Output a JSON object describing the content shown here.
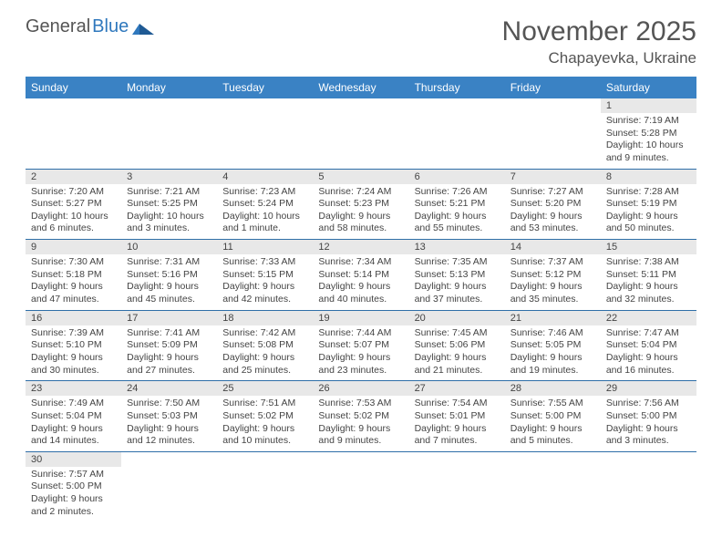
{
  "logo": {
    "text1": "General",
    "text2": "Blue"
  },
  "title": "November 2025",
  "location": "Chapayevka, Ukraine",
  "colors": {
    "header_bg": "#3a82c4",
    "header_text": "#ffffff",
    "daynum_bg": "#e8e8e8",
    "border": "#2f6fa8",
    "text": "#444444",
    "title": "#555555"
  },
  "weekdays": [
    "Sunday",
    "Monday",
    "Tuesday",
    "Wednesday",
    "Thursday",
    "Friday",
    "Saturday"
  ],
  "weeks": [
    [
      null,
      null,
      null,
      null,
      null,
      null,
      {
        "d": "1",
        "sr": "7:19 AM",
        "ss": "5:28 PM",
        "dl": "10 hours and 9 minutes."
      }
    ],
    [
      {
        "d": "2",
        "sr": "7:20 AM",
        "ss": "5:27 PM",
        "dl": "10 hours and 6 minutes."
      },
      {
        "d": "3",
        "sr": "7:21 AM",
        "ss": "5:25 PM",
        "dl": "10 hours and 3 minutes."
      },
      {
        "d": "4",
        "sr": "7:23 AM",
        "ss": "5:24 PM",
        "dl": "10 hours and 1 minute."
      },
      {
        "d": "5",
        "sr": "7:24 AM",
        "ss": "5:23 PM",
        "dl": "9 hours and 58 minutes."
      },
      {
        "d": "6",
        "sr": "7:26 AM",
        "ss": "5:21 PM",
        "dl": "9 hours and 55 minutes."
      },
      {
        "d": "7",
        "sr": "7:27 AM",
        "ss": "5:20 PM",
        "dl": "9 hours and 53 minutes."
      },
      {
        "d": "8",
        "sr": "7:28 AM",
        "ss": "5:19 PM",
        "dl": "9 hours and 50 minutes."
      }
    ],
    [
      {
        "d": "9",
        "sr": "7:30 AM",
        "ss": "5:18 PM",
        "dl": "9 hours and 47 minutes."
      },
      {
        "d": "10",
        "sr": "7:31 AM",
        "ss": "5:16 PM",
        "dl": "9 hours and 45 minutes."
      },
      {
        "d": "11",
        "sr": "7:33 AM",
        "ss": "5:15 PM",
        "dl": "9 hours and 42 minutes."
      },
      {
        "d": "12",
        "sr": "7:34 AM",
        "ss": "5:14 PM",
        "dl": "9 hours and 40 minutes."
      },
      {
        "d": "13",
        "sr": "7:35 AM",
        "ss": "5:13 PM",
        "dl": "9 hours and 37 minutes."
      },
      {
        "d": "14",
        "sr": "7:37 AM",
        "ss": "5:12 PM",
        "dl": "9 hours and 35 minutes."
      },
      {
        "d": "15",
        "sr": "7:38 AM",
        "ss": "5:11 PM",
        "dl": "9 hours and 32 minutes."
      }
    ],
    [
      {
        "d": "16",
        "sr": "7:39 AM",
        "ss": "5:10 PM",
        "dl": "9 hours and 30 minutes."
      },
      {
        "d": "17",
        "sr": "7:41 AM",
        "ss": "5:09 PM",
        "dl": "9 hours and 27 minutes."
      },
      {
        "d": "18",
        "sr": "7:42 AM",
        "ss": "5:08 PM",
        "dl": "9 hours and 25 minutes."
      },
      {
        "d": "19",
        "sr": "7:44 AM",
        "ss": "5:07 PM",
        "dl": "9 hours and 23 minutes."
      },
      {
        "d": "20",
        "sr": "7:45 AM",
        "ss": "5:06 PM",
        "dl": "9 hours and 21 minutes."
      },
      {
        "d": "21",
        "sr": "7:46 AM",
        "ss": "5:05 PM",
        "dl": "9 hours and 19 minutes."
      },
      {
        "d": "22",
        "sr": "7:47 AM",
        "ss": "5:04 PM",
        "dl": "9 hours and 16 minutes."
      }
    ],
    [
      {
        "d": "23",
        "sr": "7:49 AM",
        "ss": "5:04 PM",
        "dl": "9 hours and 14 minutes."
      },
      {
        "d": "24",
        "sr": "7:50 AM",
        "ss": "5:03 PM",
        "dl": "9 hours and 12 minutes."
      },
      {
        "d": "25",
        "sr": "7:51 AM",
        "ss": "5:02 PM",
        "dl": "9 hours and 10 minutes."
      },
      {
        "d": "26",
        "sr": "7:53 AM",
        "ss": "5:02 PM",
        "dl": "9 hours and 9 minutes."
      },
      {
        "d": "27",
        "sr": "7:54 AM",
        "ss": "5:01 PM",
        "dl": "9 hours and 7 minutes."
      },
      {
        "d": "28",
        "sr": "7:55 AM",
        "ss": "5:00 PM",
        "dl": "9 hours and 5 minutes."
      },
      {
        "d": "29",
        "sr": "7:56 AM",
        "ss": "5:00 PM",
        "dl": "9 hours and 3 minutes."
      }
    ],
    [
      {
        "d": "30",
        "sr": "7:57 AM",
        "ss": "5:00 PM",
        "dl": "9 hours and 2 minutes."
      },
      null,
      null,
      null,
      null,
      null,
      null
    ]
  ],
  "labels": {
    "sunrise": "Sunrise:",
    "sunset": "Sunset:",
    "daylight": "Daylight:"
  }
}
